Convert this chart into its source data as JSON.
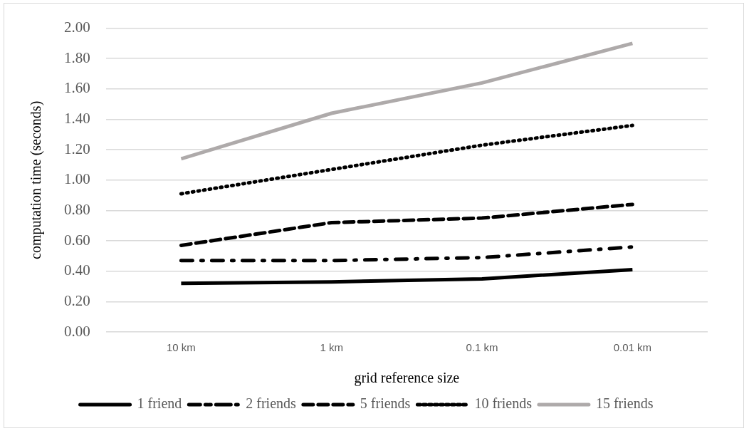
{
  "chart_data": {
    "type": "line",
    "categories": [
      "10 km",
      "1 km",
      "0.1 km",
      "0.01 km"
    ],
    "xlabel": "grid reference size",
    "ylabel": "computation time (seconds)",
    "ylim": [
      0,
      2
    ],
    "yticks": [
      {
        "value": 0,
        "label": "0.00"
      },
      {
        "value": 0.2,
        "label": "0.20"
      },
      {
        "value": 0.4,
        "label": "0.40"
      },
      {
        "value": 0.6,
        "label": "0.60"
      },
      {
        "value": 0.8,
        "label": "0.80"
      },
      {
        "value": 1,
        "label": "1.00"
      },
      {
        "value": 1.2,
        "label": "1.20"
      },
      {
        "value": 1.4,
        "label": "1.40"
      },
      {
        "value": 1.6,
        "label": "1.60"
      },
      {
        "value": 1.8,
        "label": "1.80"
      },
      {
        "value": 2,
        "label": "2.00"
      }
    ],
    "grid": "y",
    "legend": "bottom",
    "marker": "none",
    "series": [
      {
        "name": "1 friend",
        "color": "#000000",
        "line_style": "solid",
        "values": [
          0.32,
          0.33,
          0.35,
          0.41
        ]
      },
      {
        "name": "2 friends",
        "color": "#000000",
        "line_style": "dashdot",
        "values": [
          0.47,
          0.47,
          0.49,
          0.56
        ]
      },
      {
        "name": "5 friends",
        "color": "#000000",
        "line_style": "dashed",
        "values": [
          0.57,
          0.72,
          0.75,
          0.84
        ]
      },
      {
        "name": "10 friends",
        "color": "#000000",
        "line_style": "dotted",
        "values": [
          0.91,
          1.07,
          1.23,
          1.36
        ]
      },
      {
        "name": "15 friends",
        "color": "#aeaaaa",
        "line_style": "solid",
        "values": [
          1.14,
          1.44,
          1.64,
          1.9
        ]
      }
    ]
  }
}
